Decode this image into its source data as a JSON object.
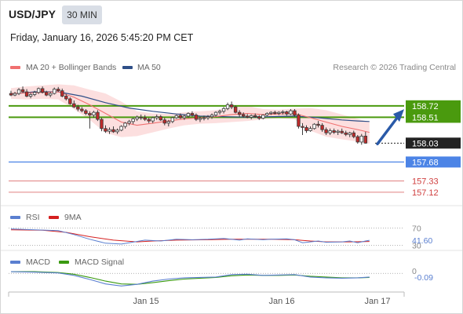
{
  "header": {
    "symbol": "USD/JPY",
    "timeframe": "30 MIN",
    "datetime": "Friday, January 16, 2026 5:45:20 PM CET"
  },
  "legend": {
    "ma20_label": "MA 20 + Bollinger Bands",
    "ma50_label": "MA 50",
    "credit": "Research © 2026 Trading Central",
    "rsi_label": "RSI",
    "rsi_ma_label": "9MA",
    "macd_label": "MACD",
    "macd_signal_label": "MACD Signal"
  },
  "colors": {
    "ma20": "#f07070",
    "ma50": "#2f4f88",
    "bands": "#fcd9d9",
    "resistance": "#4a9a0e",
    "current_price": "#222222",
    "support_line": "#4c84e6",
    "support_other": "#d04040",
    "arrow": "#2a5aa8",
    "rsi": "#5a7fd0",
    "rsi_ma": "#d52020",
    "macd": "#5a7fd0",
    "macd_signal": "#3a9a10"
  },
  "chart_data": [
    {
      "type": "candlestick",
      "name": "price",
      "ylim": [
        156.9,
        159.3
      ],
      "x_ticks": [
        "Jan 15",
        "Jan 16",
        "Jan 17"
      ],
      "candles": [
        [
          158.95,
          159.0,
          158.9,
          158.92
        ],
        [
          158.92,
          158.98,
          158.9,
          158.95
        ],
        [
          158.95,
          159.05,
          158.92,
          159.02
        ],
        [
          159.02,
          159.08,
          158.96,
          158.98
        ],
        [
          158.98,
          159.03,
          158.88,
          158.9
        ],
        [
          158.9,
          158.96,
          158.86,
          158.93
        ],
        [
          158.93,
          159.0,
          158.9,
          158.97
        ],
        [
          158.97,
          159.06,
          158.94,
          159.04
        ],
        [
          159.04,
          159.08,
          158.95,
          158.97
        ],
        [
          158.97,
          159.0,
          158.9,
          158.92
        ],
        [
          158.92,
          158.98,
          158.88,
          158.95
        ],
        [
          158.95,
          159.06,
          158.93,
          159.03
        ],
        [
          159.03,
          159.07,
          158.98,
          159.0
        ],
        [
          159.0,
          159.04,
          158.88,
          158.9
        ],
        [
          158.9,
          158.94,
          158.82,
          158.85
        ],
        [
          158.85,
          158.88,
          158.74,
          158.76
        ],
        [
          158.76,
          158.82,
          158.68,
          158.7
        ],
        [
          158.7,
          158.74,
          158.62,
          158.66
        ],
        [
          158.66,
          158.7,
          158.6,
          158.63
        ],
        [
          158.63,
          158.66,
          158.55,
          158.58
        ],
        [
          158.58,
          158.62,
          158.3,
          158.55
        ],
        [
          158.55,
          158.63,
          158.5,
          158.6
        ],
        [
          158.6,
          158.64,
          158.44,
          158.47
        ],
        [
          158.47,
          158.5,
          158.25,
          158.3
        ],
        [
          158.3,
          158.36,
          158.22,
          158.25
        ],
        [
          158.25,
          158.32,
          158.2,
          158.28
        ],
        [
          158.28,
          158.34,
          158.22,
          158.24
        ],
        [
          158.24,
          158.3,
          158.2,
          158.27
        ],
        [
          158.27,
          158.36,
          158.25,
          158.34
        ],
        [
          158.34,
          158.42,
          158.3,
          158.4
        ],
        [
          158.4,
          158.46,
          158.36,
          158.43
        ],
        [
          158.43,
          158.5,
          158.38,
          158.48
        ],
        [
          158.48,
          158.54,
          158.44,
          158.51
        ],
        [
          158.51,
          158.56,
          158.46,
          158.5
        ],
        [
          158.5,
          158.55,
          158.44,
          158.47
        ],
        [
          158.47,
          158.5,
          158.4,
          158.44
        ],
        [
          158.44,
          158.52,
          158.4,
          158.5
        ],
        [
          158.5,
          158.56,
          158.46,
          158.52
        ],
        [
          158.52,
          158.55,
          158.44,
          158.46
        ],
        [
          158.46,
          158.5,
          158.36,
          158.4
        ],
        [
          158.4,
          158.46,
          158.34,
          158.43
        ],
        [
          158.43,
          158.52,
          158.4,
          158.5
        ],
        [
          158.5,
          158.56,
          158.48,
          158.54
        ],
        [
          158.54,
          158.58,
          158.48,
          158.5
        ],
        [
          158.5,
          158.56,
          158.46,
          158.53
        ],
        [
          158.53,
          158.6,
          158.5,
          158.58
        ],
        [
          158.58,
          158.62,
          158.52,
          158.55
        ],
        [
          158.55,
          158.58,
          158.44,
          158.47
        ],
        [
          158.47,
          158.52,
          158.42,
          158.49
        ],
        [
          158.49,
          158.54,
          158.45,
          158.5
        ],
        [
          158.5,
          158.55,
          158.46,
          158.52
        ],
        [
          158.52,
          158.58,
          158.48,
          158.55
        ],
        [
          158.55,
          158.62,
          158.52,
          158.6
        ],
        [
          158.6,
          158.65,
          158.56,
          158.62
        ],
        [
          158.62,
          158.7,
          158.58,
          158.67
        ],
        [
          158.67,
          158.78,
          158.64,
          158.74
        ],
        [
          158.74,
          158.8,
          158.66,
          158.7
        ],
        [
          158.7,
          158.73,
          158.58,
          158.6
        ],
        [
          158.6,
          158.64,
          158.52,
          158.56
        ],
        [
          158.56,
          158.6,
          158.5,
          158.53
        ],
        [
          158.53,
          158.57,
          158.49,
          158.51
        ],
        [
          158.51,
          158.56,
          158.47,
          158.54
        ],
        [
          158.54,
          158.58,
          158.5,
          158.52
        ],
        [
          158.52,
          158.55,
          158.46,
          158.49
        ],
        [
          158.49,
          158.56,
          158.47,
          158.55
        ],
        [
          158.55,
          158.6,
          158.53,
          158.58
        ],
        [
          158.58,
          158.62,
          158.55,
          158.6
        ],
        [
          158.6,
          158.63,
          158.56,
          158.58
        ],
        [
          158.58,
          158.62,
          158.55,
          158.6
        ],
        [
          158.6,
          158.64,
          158.56,
          158.61
        ],
        [
          158.61,
          158.63,
          158.54,
          158.57
        ],
        [
          158.57,
          158.66,
          158.55,
          158.63
        ],
        [
          158.63,
          158.66,
          158.52,
          158.55
        ],
        [
          158.55,
          158.58,
          158.3,
          158.34
        ],
        [
          158.34,
          158.4,
          158.18,
          158.32
        ],
        [
          158.32,
          158.36,
          158.22,
          158.26
        ],
        [
          158.26,
          158.34,
          158.24,
          158.3
        ],
        [
          158.3,
          158.4,
          158.28,
          158.38
        ],
        [
          158.38,
          158.44,
          158.32,
          158.36
        ],
        [
          158.36,
          158.4,
          158.24,
          158.28
        ],
        [
          158.28,
          158.32,
          158.18,
          158.22
        ],
        [
          158.22,
          158.3,
          158.18,
          158.26
        ],
        [
          158.26,
          158.3,
          158.2,
          158.23
        ],
        [
          158.23,
          158.28,
          158.18,
          158.25
        ],
        [
          158.25,
          158.3,
          158.2,
          158.22
        ],
        [
          158.22,
          158.26,
          158.16,
          158.19
        ],
        [
          158.19,
          158.24,
          158.14,
          158.22
        ],
        [
          158.22,
          158.26,
          158.12,
          158.15
        ],
        [
          158.15,
          158.18,
          158.02,
          158.05
        ],
        [
          158.05,
          158.2,
          158.0,
          158.16
        ],
        [
          158.16,
          158.24,
          158.02,
          158.03
        ]
      ],
      "ma20": [
        [
          0,
          158.95
        ],
        [
          4,
          158.96
        ],
        [
          8,
          158.97
        ],
        [
          12,
          158.98
        ],
        [
          16,
          158.88
        ],
        [
          20,
          158.74
        ],
        [
          24,
          158.58
        ],
        [
          28,
          158.42
        ],
        [
          32,
          158.36
        ],
        [
          36,
          158.4
        ],
        [
          40,
          158.44
        ],
        [
          44,
          158.48
        ],
        [
          48,
          158.5
        ],
        [
          52,
          158.52
        ],
        [
          56,
          158.56
        ],
        [
          60,
          158.58
        ],
        [
          64,
          158.56
        ],
        [
          68,
          158.57
        ],
        [
          72,
          158.58
        ],
        [
          76,
          158.5
        ],
        [
          80,
          158.42
        ],
        [
          84,
          158.34
        ],
        [
          88,
          158.28
        ],
        [
          91,
          158.23
        ]
      ],
      "bollinger_upper": [
        [
          0,
          159.05
        ],
        [
          4,
          159.08
        ],
        [
          8,
          159.1
        ],
        [
          12,
          159.12
        ],
        [
          16,
          159.1
        ],
        [
          20,
          159.02
        ],
        [
          24,
          158.95
        ],
        [
          28,
          158.8
        ],
        [
          32,
          158.62
        ],
        [
          36,
          158.58
        ],
        [
          40,
          158.57
        ],
        [
          44,
          158.6
        ],
        [
          48,
          158.62
        ],
        [
          52,
          158.64
        ],
        [
          56,
          158.7
        ],
        [
          60,
          158.72
        ],
        [
          64,
          158.66
        ],
        [
          68,
          158.65
        ],
        [
          72,
          158.67
        ],
        [
          76,
          158.68
        ],
        [
          80,
          158.64
        ],
        [
          84,
          158.56
        ],
        [
          88,
          158.48
        ],
        [
          91,
          158.42
        ]
      ],
      "bollinger_lower": [
        [
          0,
          158.85
        ],
        [
          4,
          158.84
        ],
        [
          8,
          158.85
        ],
        [
          12,
          158.84
        ],
        [
          16,
          158.66
        ],
        [
          20,
          158.46
        ],
        [
          24,
          158.22
        ],
        [
          28,
          158.14
        ],
        [
          32,
          158.16
        ],
        [
          36,
          158.23
        ],
        [
          40,
          158.3
        ],
        [
          44,
          158.36
        ],
        [
          48,
          158.39
        ],
        [
          52,
          158.4
        ],
        [
          56,
          158.42
        ],
        [
          60,
          158.44
        ],
        [
          64,
          158.47
        ],
        [
          68,
          158.49
        ],
        [
          72,
          158.47
        ],
        [
          76,
          158.26
        ],
        [
          80,
          158.15
        ],
        [
          84,
          158.1
        ],
        [
          88,
          158.06
        ],
        [
          91,
          158.02
        ]
      ],
      "ma50": [
        [
          0,
          158.94
        ],
        [
          6,
          158.98
        ],
        [
          12,
          158.98
        ],
        [
          18,
          158.9
        ],
        [
          24,
          158.78
        ],
        [
          30,
          158.68
        ],
        [
          36,
          158.62
        ],
        [
          42,
          158.57
        ],
        [
          48,
          158.53
        ],
        [
          54,
          158.52
        ],
        [
          60,
          158.51
        ],
        [
          66,
          158.52
        ],
        [
          72,
          158.53
        ],
        [
          78,
          158.5
        ],
        [
          84,
          158.46
        ],
        [
          88,
          158.44
        ],
        [
          91,
          158.43
        ]
      ],
      "levels": [
        {
          "price": 158.72,
          "label": "158.72",
          "kind": "resistance"
        },
        {
          "price": 158.51,
          "label": "158.51",
          "kind": "resistance"
        },
        {
          "price": 158.03,
          "label": "158.03",
          "kind": "current"
        },
        {
          "price": 157.68,
          "label": "157.68",
          "kind": "support"
        },
        {
          "price": 157.33,
          "label": "157.33",
          "kind": "support-minor"
        },
        {
          "price": 157.12,
          "label": "157.12",
          "kind": "support-minor"
        }
      ]
    },
    {
      "type": "line",
      "name": "RSI",
      "ylim": [
        20,
        80
      ],
      "levels": [
        {
          "value": 70,
          "label": "70"
        },
        {
          "value": 30,
          "label": "30"
        }
      ],
      "current_label": "41.60",
      "rsi": [
        [
          0,
          68
        ],
        [
          6,
          66
        ],
        [
          12,
          64
        ],
        [
          16,
          55
        ],
        [
          20,
          44
        ],
        [
          24,
          35
        ],
        [
          28,
          33
        ],
        [
          30,
          36
        ],
        [
          34,
          42
        ],
        [
          38,
          40
        ],
        [
          42,
          44
        ],
        [
          46,
          43
        ],
        [
          50,
          44
        ],
        [
          54,
          46
        ],
        [
          58,
          42
        ],
        [
          60,
          45
        ],
        [
          64,
          43
        ],
        [
          66,
          44
        ],
        [
          70,
          45
        ],
        [
          72,
          43
        ],
        [
          74,
          36
        ],
        [
          76,
          38
        ],
        [
          78,
          40
        ],
        [
          80,
          37
        ],
        [
          84,
          38
        ],
        [
          86,
          40
        ],
        [
          88,
          36
        ],
        [
          90,
          40
        ],
        [
          91,
          41.6
        ]
      ],
      "ma9": [
        [
          0,
          66
        ],
        [
          8,
          65
        ],
        [
          14,
          60
        ],
        [
          20,
          50
        ],
        [
          26,
          42
        ],
        [
          32,
          38
        ],
        [
          36,
          40
        ],
        [
          42,
          42
        ],
        [
          50,
          43
        ],
        [
          56,
          44
        ],
        [
          60,
          44
        ],
        [
          66,
          44
        ],
        [
          72,
          43
        ],
        [
          76,
          40
        ],
        [
          80,
          38
        ],
        [
          86,
          38
        ],
        [
          91,
          39
        ]
      ]
    },
    {
      "type": "line",
      "name": "MACD",
      "ylim": [
        -0.42,
        0.12
      ],
      "zero_label": "0",
      "current_label": "-0.09",
      "macd": [
        [
          0,
          0.04
        ],
        [
          6,
          0.03
        ],
        [
          12,
          0.01
        ],
        [
          16,
          -0.05
        ],
        [
          20,
          -0.15
        ],
        [
          24,
          -0.26
        ],
        [
          28,
          -0.31
        ],
        [
          32,
          -0.27
        ],
        [
          36,
          -0.19
        ],
        [
          40,
          -0.14
        ],
        [
          44,
          -0.11
        ],
        [
          48,
          -0.1
        ],
        [
          52,
          -0.09
        ],
        [
          56,
          -0.03
        ],
        [
          60,
          -0.02
        ],
        [
          64,
          -0.05
        ],
        [
          68,
          -0.04
        ],
        [
          72,
          -0.03
        ],
        [
          76,
          -0.09
        ],
        [
          80,
          -0.11
        ],
        [
          84,
          -0.12
        ],
        [
          88,
          -0.11
        ],
        [
          91,
          -0.09
        ]
      ],
      "signal": [
        [
          0,
          0.04
        ],
        [
          6,
          0.04
        ],
        [
          12,
          0.02
        ],
        [
          16,
          -0.02
        ],
        [
          20,
          -0.1
        ],
        [
          24,
          -0.19
        ],
        [
          28,
          -0.26
        ],
        [
          32,
          -0.27
        ],
        [
          36,
          -0.23
        ],
        [
          40,
          -0.18
        ],
        [
          44,
          -0.14
        ],
        [
          48,
          -0.12
        ],
        [
          52,
          -0.1
        ],
        [
          56,
          -0.06
        ],
        [
          60,
          -0.04
        ],
        [
          64,
          -0.05
        ],
        [
          68,
          -0.05
        ],
        [
          72,
          -0.04
        ],
        [
          76,
          -0.07
        ],
        [
          80,
          -0.09
        ],
        [
          84,
          -0.11
        ],
        [
          88,
          -0.11
        ],
        [
          91,
          -0.1
        ]
      ]
    }
  ]
}
